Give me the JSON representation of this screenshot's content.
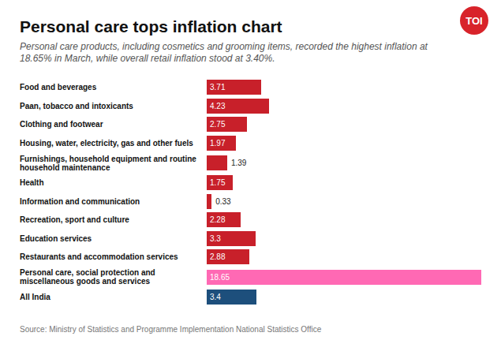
{
  "chart_data": {
    "type": "bar",
    "orientation": "horizontal",
    "title": "Personal care tops inflation chart",
    "subtitle": "Personal care products, including cosmetics and grooming items, recorded the highest inflation at 18.65% in March, while overall retail inflation stood at 3.40%.",
    "source": "Source: Ministry of Statistics and Programme Implementation National Statistics Office",
    "logo": "TOI",
    "categories": [
      "Food and beverages",
      "Paan, tobacco and intoxicants",
      "Clothing and footwear",
      "Housing, water, electricity, gas and other fuels",
      "Furnishings, household equipment and routine household maintenance",
      "Health",
      "Information and communication",
      "Recreation, sport and culture",
      "Education services",
      "Restaurants and accommodation services",
      "Personal care, social protection and miscellaneous goods and services",
      "All India"
    ],
    "values": [
      3.71,
      4.23,
      2.75,
      1.97,
      1.39,
      1.75,
      0.33,
      2.28,
      3.3,
      2.88,
      18.65,
      3.4
    ],
    "colors": [
      "#c8202a",
      "#c8202a",
      "#c8202a",
      "#c8202a",
      "#c8202a",
      "#c8202a",
      "#c8202a",
      "#c8202a",
      "#c8202a",
      "#c8202a",
      "#ff69b4",
      "#1d4f7c"
    ],
    "xlim": [
      0,
      18.65
    ],
    "data_labels": true,
    "tick_labels": "y",
    "grid": false
  }
}
